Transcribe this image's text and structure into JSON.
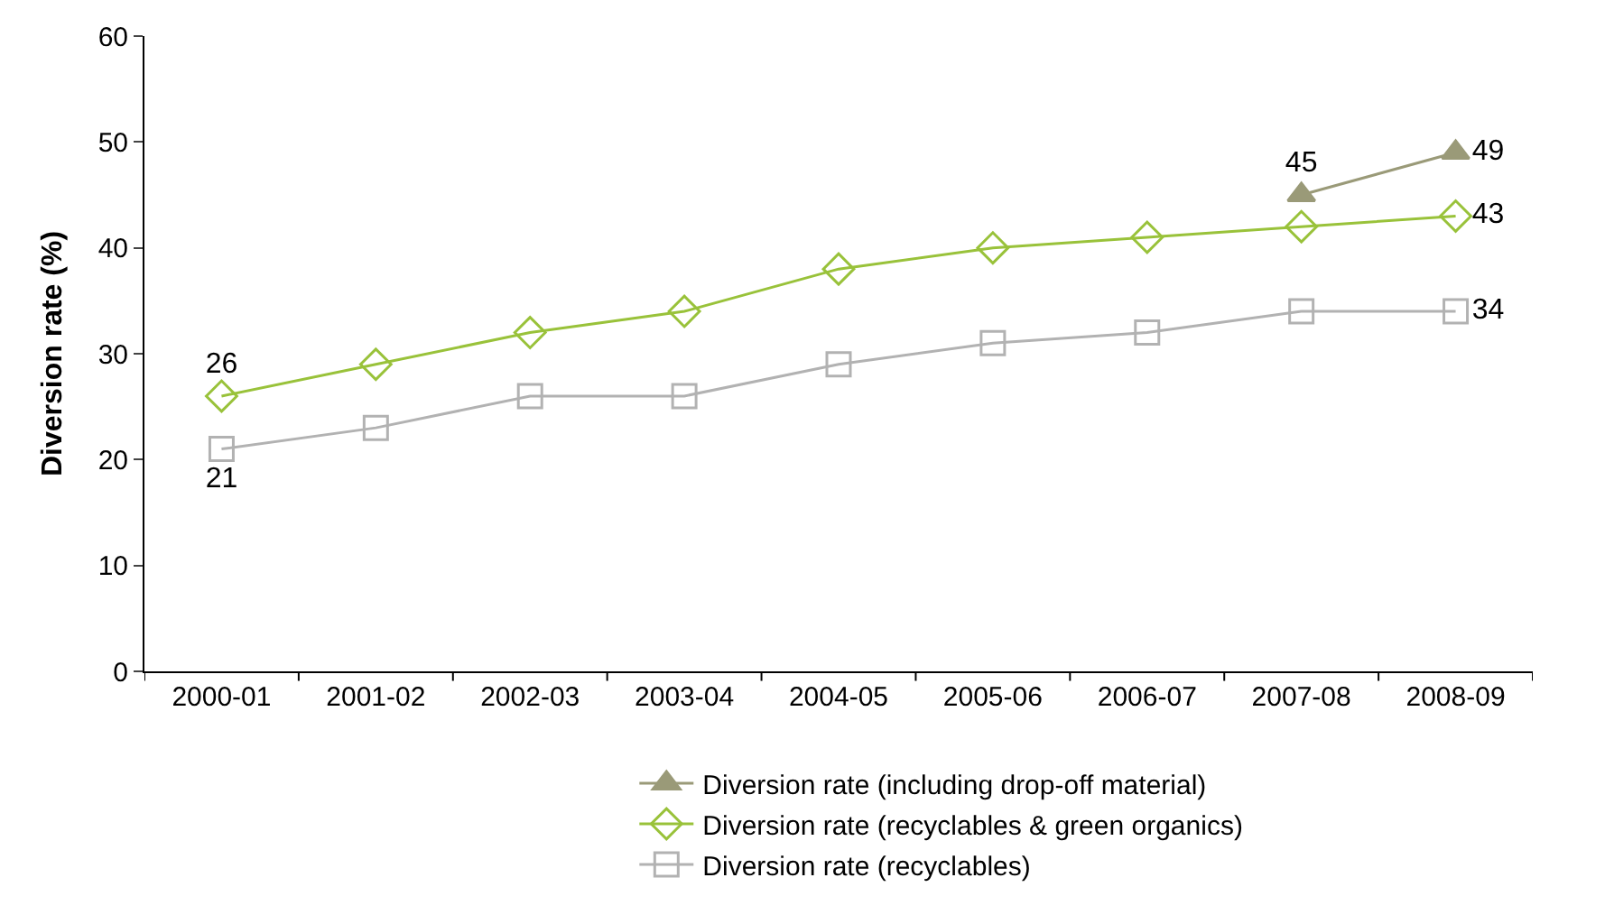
{
  "chart_data": {
    "type": "line",
    "ylabel": "Diversion rate (%)",
    "categories": [
      "2000-01",
      "2001-02",
      "2002-03",
      "2003-04",
      "2004-05",
      "2005-06",
      "2006-07",
      "2007-08",
      "2008-09"
    ],
    "series": [
      {
        "name": "Diversion rate (including drop-off material)",
        "color": "#9a9a78",
        "marker": "triangle",
        "values": [
          null,
          null,
          null,
          null,
          null,
          null,
          null,
          45,
          49
        ],
        "value_labels": [
          null,
          null,
          null,
          null,
          null,
          null,
          null,
          "45",
          "49"
        ]
      },
      {
        "name": "Diversion rate (recyclables & green organics)",
        "color": "#99c23a",
        "marker": "diamond",
        "values": [
          26,
          29,
          32,
          34,
          38,
          40,
          41,
          42,
          43
        ],
        "value_labels": [
          "26",
          null,
          null,
          null,
          null,
          null,
          null,
          null,
          "43"
        ]
      },
      {
        "name": "Diversion rate (recyclables)",
        "color": "#b2b2b2",
        "marker": "square",
        "values": [
          21,
          23,
          26,
          26,
          29,
          31,
          32,
          34,
          34
        ],
        "value_labels": [
          "21",
          null,
          null,
          null,
          null,
          null,
          null,
          null,
          "34"
        ]
      }
    ],
    "ylim": [
      0,
      60
    ],
    "yticks": [
      0,
      10,
      20,
      30,
      40,
      50,
      60
    ],
    "legend": "bottom"
  }
}
